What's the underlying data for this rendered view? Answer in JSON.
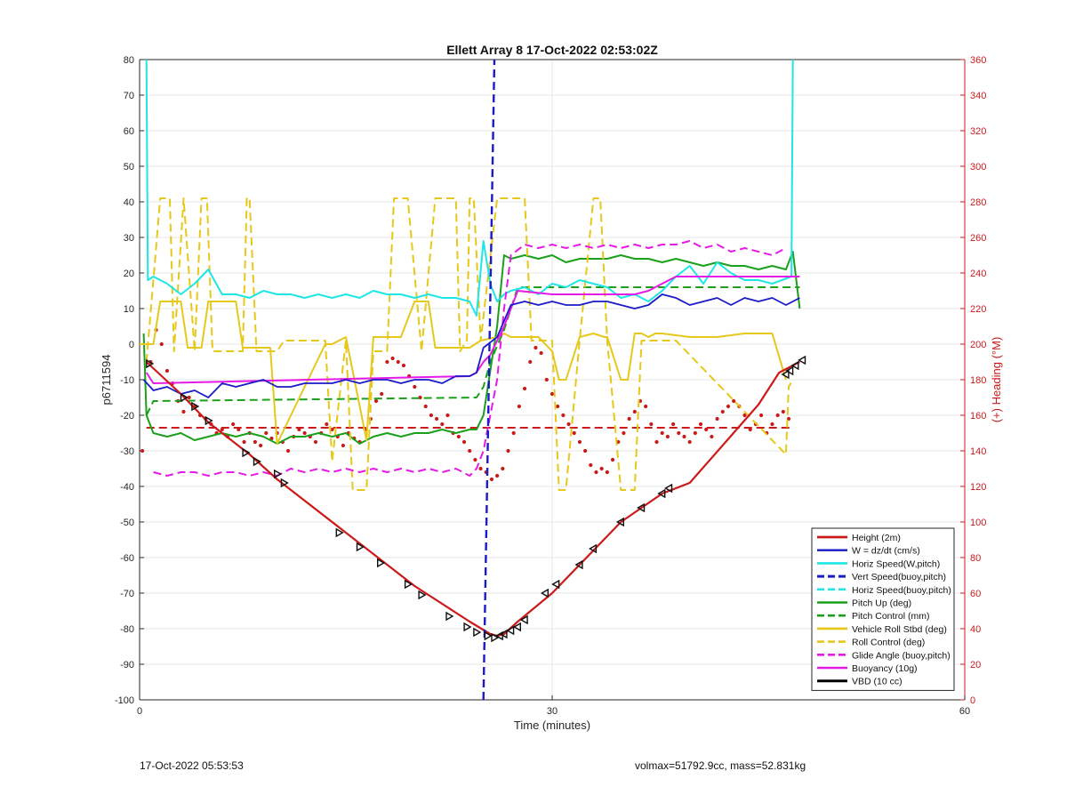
{
  "footer": {
    "date_text": "17-Oct-2022 05:53:53",
    "vol_text": "volmax=51792.9cc, mass=52.831kg"
  },
  "chart_data": {
    "type": "line",
    "title": "Ellett Array 8 17-Oct-2022 02:53:02Z",
    "xlabel": "Time (minutes)",
    "ylabel": "p6711594",
    "y2label": "(+) Heading (°M)",
    "xlim": [
      0,
      60
    ],
    "ylim": [
      -100,
      80
    ],
    "y2lim": [
      0,
      360
    ],
    "xticks": [
      0,
      30,
      60
    ],
    "yticks": [
      -100,
      -90,
      -80,
      -70,
      -60,
      -50,
      -40,
      -30,
      -20,
      -10,
      0,
      10,
      20,
      30,
      40,
      50,
      60,
      70,
      80
    ],
    "y2ticks": [
      0,
      20,
      40,
      60,
      80,
      100,
      120,
      140,
      160,
      180,
      200,
      220,
      240,
      260,
      280,
      300,
      320,
      340,
      360
    ],
    "grid": true,
    "legend_position": "bottom-right",
    "colors": {
      "axis": "#262626",
      "right_axis": "#cc1a1a",
      "grid": "#e6e6e6"
    },
    "series": [
      {
        "name": "Height (2m)",
        "color": "#cc1a1a",
        "dash": "solid",
        "width": 2.2,
        "marker": "triangle",
        "x": [
          0.5,
          3,
          5,
          8,
          10,
          15,
          20,
          24,
          25.5,
          26,
          26.5,
          27.5,
          30,
          35,
          38,
          40,
          45,
          46.5,
          48
        ],
        "y": [
          -5,
          -14,
          -22,
          -31,
          -38,
          -53,
          -68,
          -78,
          -81.5,
          -82,
          -81.5,
          -78,
          -70,
          -50,
          -42,
          -39,
          -17,
          -8,
          -5
        ],
        "marker_x": [
          0.7,
          3.2,
          4,
          5,
          7.7,
          8.5,
          10,
          10.5,
          14.5,
          16,
          17.5,
          19.5,
          20.5,
          22.5,
          23.8,
          24.5,
          25.3,
          25.8,
          26.2,
          26.5,
          27,
          27.5,
          28,
          29.5,
          30.3,
          32,
          33,
          35,
          36.5,
          38,
          38.5,
          47,
          47.3,
          47.7,
          48.2
        ],
        "marker_y": [
          -5.5,
          -15,
          -17.5,
          -21.5,
          -30.5,
          -33,
          -36.5,
          -39,
          -53,
          -57,
          -61.5,
          -67.5,
          -70.5,
          -76.5,
          -79.5,
          -81,
          -82,
          -82.5,
          -82,
          -81.5,
          -80.5,
          -79.5,
          -77.5,
          -70,
          -67.5,
          -62,
          -57.5,
          -50,
          -46,
          -42,
          -40.5,
          -8.5,
          -7.5,
          -6,
          -4.5
        ]
      },
      {
        "name": "W = dz/dt (cm/s)",
        "color": "#1a1ac8",
        "dash": "solid",
        "width": 1.8,
        "x": [
          0.3,
          1,
          2,
          3,
          4,
          5,
          6,
          7,
          8,
          9,
          10,
          11,
          12,
          13,
          14,
          15,
          16,
          17,
          18,
          19,
          20,
          21,
          22,
          23,
          24,
          24.5,
          25,
          26,
          27,
          28,
          29,
          30,
          31,
          32,
          33,
          34,
          35,
          36,
          37,
          38,
          39,
          40,
          41,
          42,
          43,
          44,
          45,
          46,
          47,
          48
        ],
        "y": [
          -10,
          -13,
          -12,
          -14,
          -13,
          -15,
          -11,
          -12,
          -11,
          -10,
          -12,
          -12,
          -11,
          -11,
          -11,
          -10,
          -11,
          -10,
          -10,
          -11,
          -10,
          -10,
          -11,
          -9,
          -9,
          -8,
          -1,
          2,
          11,
          12,
          11,
          12,
          11,
          11,
          12,
          12,
          11,
          10,
          11,
          14,
          13,
          11,
          12,
          13,
          11,
          13,
          12,
          13,
          11,
          13
        ]
      },
      {
        "name": "Horiz Speed(W,pitch)",
        "color": "#1ee6e6",
        "dash": "solid",
        "width": 2.0,
        "x": [
          0.5,
          0.6,
          1,
          2,
          3,
          4,
          5,
          6,
          7,
          8,
          9,
          10,
          11,
          12,
          13,
          14,
          15,
          16,
          17,
          18,
          19,
          20,
          21,
          22,
          23,
          24,
          24.5,
          25,
          25.5,
          26,
          26.5,
          27,
          28,
          29,
          30,
          31,
          32,
          33,
          34,
          35,
          36,
          37,
          38,
          39,
          40,
          41,
          42,
          43,
          44,
          45,
          46,
          47.4,
          47.5
        ],
        "y": [
          80,
          18,
          19,
          17,
          14,
          17,
          21,
          14,
          14,
          13,
          15,
          14,
          14,
          13,
          14,
          13,
          14,
          13,
          15,
          14,
          14,
          13,
          14,
          13,
          13,
          12,
          8,
          29,
          17,
          12,
          14,
          15,
          16,
          14,
          17,
          16,
          18,
          17,
          16,
          13,
          14,
          12,
          15,
          19,
          22,
          17,
          23,
          20,
          18,
          18,
          17,
          19,
          80
        ]
      },
      {
        "name": "Vert Speed(buoy,pitch)",
        "color": "#1a1ac8",
        "dash": "dashed",
        "width": 2.4,
        "x": [
          25,
          25.8
        ],
        "y": [
          -100,
          80
        ]
      },
      {
        "name": "Horiz Speed(buoy,pitch)",
        "color": "#1ee6e6",
        "dash": "dashed",
        "width": 2.0,
        "x": [],
        "y": []
      },
      {
        "name": "Pitch Up (deg)",
        "color": "#1aa01a",
        "dash": "solid",
        "width": 2.0,
        "x": [
          0.3,
          0.5,
          1,
          2,
          3,
          4,
          5,
          6,
          7,
          8,
          9,
          10,
          11,
          12,
          13,
          14,
          15,
          16,
          17,
          18,
          19,
          20,
          21,
          22,
          23,
          24,
          24.5,
          25,
          26,
          26.5,
          27,
          28,
          29,
          30,
          31,
          32,
          33,
          34,
          35,
          36,
          37,
          38,
          39,
          40,
          41,
          42,
          43,
          44,
          45,
          46,
          47,
          47.5,
          48
        ],
        "y": [
          3,
          -20,
          -25,
          -26,
          -25,
          -27,
          -26,
          -25,
          -26,
          -25,
          -26,
          -28,
          -26,
          -26,
          -25,
          -26,
          -25,
          -28,
          -26,
          -25,
          -26,
          -25,
          -25,
          -24,
          -25,
          -24,
          -24,
          -20,
          5,
          25,
          24,
          25,
          24,
          25,
          23,
          24,
          24,
          24,
          25,
          24,
          24,
          23,
          24,
          23,
          22,
          23,
          22,
          22,
          21,
          22,
          21,
          26,
          10
        ]
      },
      {
        "name": "Pitch Control (mm)",
        "color": "#1aa01a",
        "dash": "dashed",
        "width": 2.0,
        "x": [
          0.5,
          1,
          24.5,
          25,
          25.5,
          26.5,
          27.5,
          30,
          48
        ],
        "y": [
          -20,
          -16,
          -15,
          -12,
          -5,
          4,
          16,
          16,
          16
        ]
      },
      {
        "name": "Vehicle Roll Stbd (deg)",
        "color": "#e6c81a",
        "dash": "solid",
        "width": 2.0,
        "x": [
          0,
          1,
          1.5,
          3,
          3.5,
          4.5,
          5,
          7,
          7.5,
          9.5,
          10,
          13.5,
          14,
          15,
          16.5,
          17,
          19,
          20,
          21,
          21.5,
          22.5,
          23.2,
          24,
          24.8,
          26,
          26.5,
          27,
          29,
          30,
          30.5,
          31,
          32,
          33,
          33.8,
          34,
          35,
          35.5,
          36,
          36.5,
          37,
          37.5,
          38,
          40,
          42,
          44,
          46,
          47
        ],
        "y": [
          0,
          0,
          12,
          12,
          -1,
          -1,
          12,
          12,
          -1,
          -1,
          -28,
          0,
          0,
          2,
          -27,
          2,
          2,
          12,
          12,
          -1,
          -1,
          -1,
          -1,
          1,
          2,
          3,
          2,
          2,
          -2,
          -10,
          -10,
          2,
          3,
          2,
          2,
          -10,
          -10,
          3,
          3,
          2,
          3,
          3,
          2,
          2,
          3,
          3,
          -10
        ]
      },
      {
        "name": "Roll Control (deg)",
        "color": "#e6c81a",
        "dash": "dashed",
        "width": 2.0,
        "x": [
          0.5,
          1.5,
          2.2,
          2.5,
          3.2,
          4,
          4.5,
          4.9,
          5.3,
          7.5,
          7.8,
          8,
          8.5,
          10,
          10.5,
          13.5,
          14,
          15,
          15.5,
          16.5,
          17,
          18,
          18.5,
          19.5,
          20.5,
          21.5,
          22,
          23,
          23.3,
          23.8,
          24,
          24.3,
          24.8,
          26,
          26.5,
          27,
          28,
          28.5,
          30,
          30.5,
          31,
          32,
          33,
          33.5,
          34,
          35,
          36,
          36.5,
          37,
          38,
          39,
          47,
          47.2,
          47.5
        ],
        "y": [
          -5,
          41,
          41,
          -2,
          41,
          -2,
          41,
          41,
          -2,
          -2,
          41,
          41,
          -2,
          -2,
          1,
          1,
          -33,
          1,
          -41,
          -41,
          -2,
          -2,
          41,
          41,
          -2,
          41,
          41,
          41,
          -2,
          1,
          41,
          41,
          1,
          41,
          41,
          41,
          41,
          1,
          1,
          -41,
          -41,
          1,
          41,
          41,
          1,
          -41,
          -41,
          1,
          1,
          1,
          1,
          -31,
          -12,
          -10
        ]
      },
      {
        "name": "Glide Angle (buoy,pitch)",
        "color": "#e61ae6",
        "dash": "dashed",
        "width": 2.0,
        "x": [
          1,
          2,
          3,
          4,
          5,
          6,
          7,
          8,
          9,
          10,
          11,
          12,
          13,
          14,
          15,
          16,
          17,
          18,
          19,
          20,
          21,
          22,
          23,
          24,
          24.5,
          25,
          26,
          26.5,
          27,
          28,
          29,
          30,
          31,
          32,
          33,
          34,
          35,
          36,
          37,
          38,
          39,
          40,
          41,
          42,
          43,
          44,
          45,
          46,
          47
        ],
        "y": [
          -36,
          -37,
          -36,
          -36,
          -37,
          -36,
          -36,
          -37,
          -36,
          -37,
          -35,
          -36,
          -35,
          -36,
          -35,
          -36,
          -35,
          -36,
          -35,
          -36,
          -35,
          -36,
          -35,
          -37,
          -35,
          -30,
          -10,
          10,
          25,
          28,
          27,
          28,
          27,
          28,
          27,
          28,
          27,
          28,
          27,
          28,
          28,
          29,
          27,
          28,
          26,
          27,
          26,
          25,
          27
        ]
      },
      {
        "name": "Buoyancy (10g)",
        "color": "#e61ae6",
        "dash": "solid",
        "width": 2.0,
        "x": [
          0.5,
          1,
          24,
          24.5,
          25,
          25.5,
          26.5,
          27.5,
          30,
          31,
          32,
          33,
          34,
          35,
          36,
          37,
          38,
          39,
          40,
          48
        ],
        "y": [
          -8,
          -11,
          -9,
          -8,
          -5,
          -3,
          5,
          15,
          14,
          14,
          14,
          14,
          14,
          14,
          14,
          15,
          17,
          19,
          19,
          19
        ]
      },
      {
        "name": "VBD (10 cc)",
        "color": "#000000",
        "dash": "solid",
        "width": 2.4,
        "x": [
          0.5,
          1,
          24,
          24.5,
          25,
          25.5,
          26.5,
          27.5,
          30,
          31,
          32,
          33,
          34,
          35,
          36,
          37,
          38,
          39,
          40,
          47.5,
          48
        ],
        "y": [
          -8,
          -11,
          -11,
          -11,
          -7,
          -3,
          5,
          11,
          11,
          11,
          11,
          12,
          12,
          12,
          12,
          12,
          15,
          17,
          17,
          17,
          8
        ]
      }
    ],
    "heading": {
      "color": "#cc1a1a",
      "mean": 153,
      "x": [
        0.2,
        0.8,
        1.2,
        1.6,
        2.0,
        2.4,
        2.8,
        3.2,
        3.6,
        4.0,
        4.4,
        4.8,
        5.2,
        5.6,
        6.0,
        6.4,
        6.8,
        7.2,
        7.6,
        8.0,
        8.4,
        8.8,
        9.2,
        9.6,
        10.0,
        10.4,
        10.8,
        11.2,
        11.6,
        12.0,
        12.4,
        12.8,
        13.2,
        13.6,
        14.0,
        14.4,
        14.8,
        15.2,
        15.6,
        16.0,
        16.4,
        16.8,
        17.2,
        17.6,
        18.0,
        18.4,
        18.8,
        19.2,
        19.6,
        20.0,
        20.4,
        20.8,
        21.2,
        21.6,
        22.0,
        22.4,
        22.8,
        23.2,
        23.6,
        24.0,
        24.4,
        24.8,
        25.2,
        25.6,
        26.0,
        26.4,
        26.8,
        27.2,
        27.6,
        28.0,
        28.4,
        28.8,
        29.2,
        29.6,
        30.0,
        30.4,
        30.8,
        31.2,
        31.6,
        32.0,
        32.4,
        32.8,
        33.2,
        33.6,
        34.0,
        34.4,
        34.8,
        35.2,
        35.6,
        36.0,
        36.4,
        36.8,
        37.2,
        37.6,
        38.0,
        38.4,
        38.8,
        39.2,
        39.6,
        40.0,
        40.4,
        40.8,
        41.2,
        41.6,
        42.0,
        42.4,
        42.8,
        43.2,
        43.6,
        44.0,
        44.4,
        44.8,
        45.2,
        45.6,
        46.0,
        46.4,
        46.8,
        47.2
      ],
      "y": [
        140,
        190,
        208,
        200,
        185,
        178,
        168,
        162,
        170,
        165,
        160,
        158,
        155,
        150,
        152,
        148,
        155,
        152,
        145,
        150,
        145,
        143,
        150,
        147,
        150,
        145,
        140,
        148,
        152,
        150,
        148,
        145,
        150,
        155,
        152,
        148,
        143,
        150,
        147,
        145,
        152,
        158,
        168,
        172,
        190,
        192,
        190,
        188,
        182,
        176,
        170,
        165,
        160,
        158,
        155,
        160,
        150,
        148,
        145,
        140,
        135,
        130,
        128,
        124,
        126,
        130,
        140,
        150,
        165,
        175,
        190,
        198,
        195,
        180,
        172,
        165,
        160,
        155,
        150,
        145,
        140,
        132,
        128,
        130,
        128,
        135,
        145,
        150,
        158,
        162,
        168,
        165,
        155,
        145,
        150,
        148,
        155,
        150,
        148,
        145,
        150,
        155,
        152,
        148,
        158,
        162,
        165,
        168,
        165,
        160,
        152,
        155,
        160,
        150,
        155,
        160,
        162,
        158
      ]
    }
  }
}
